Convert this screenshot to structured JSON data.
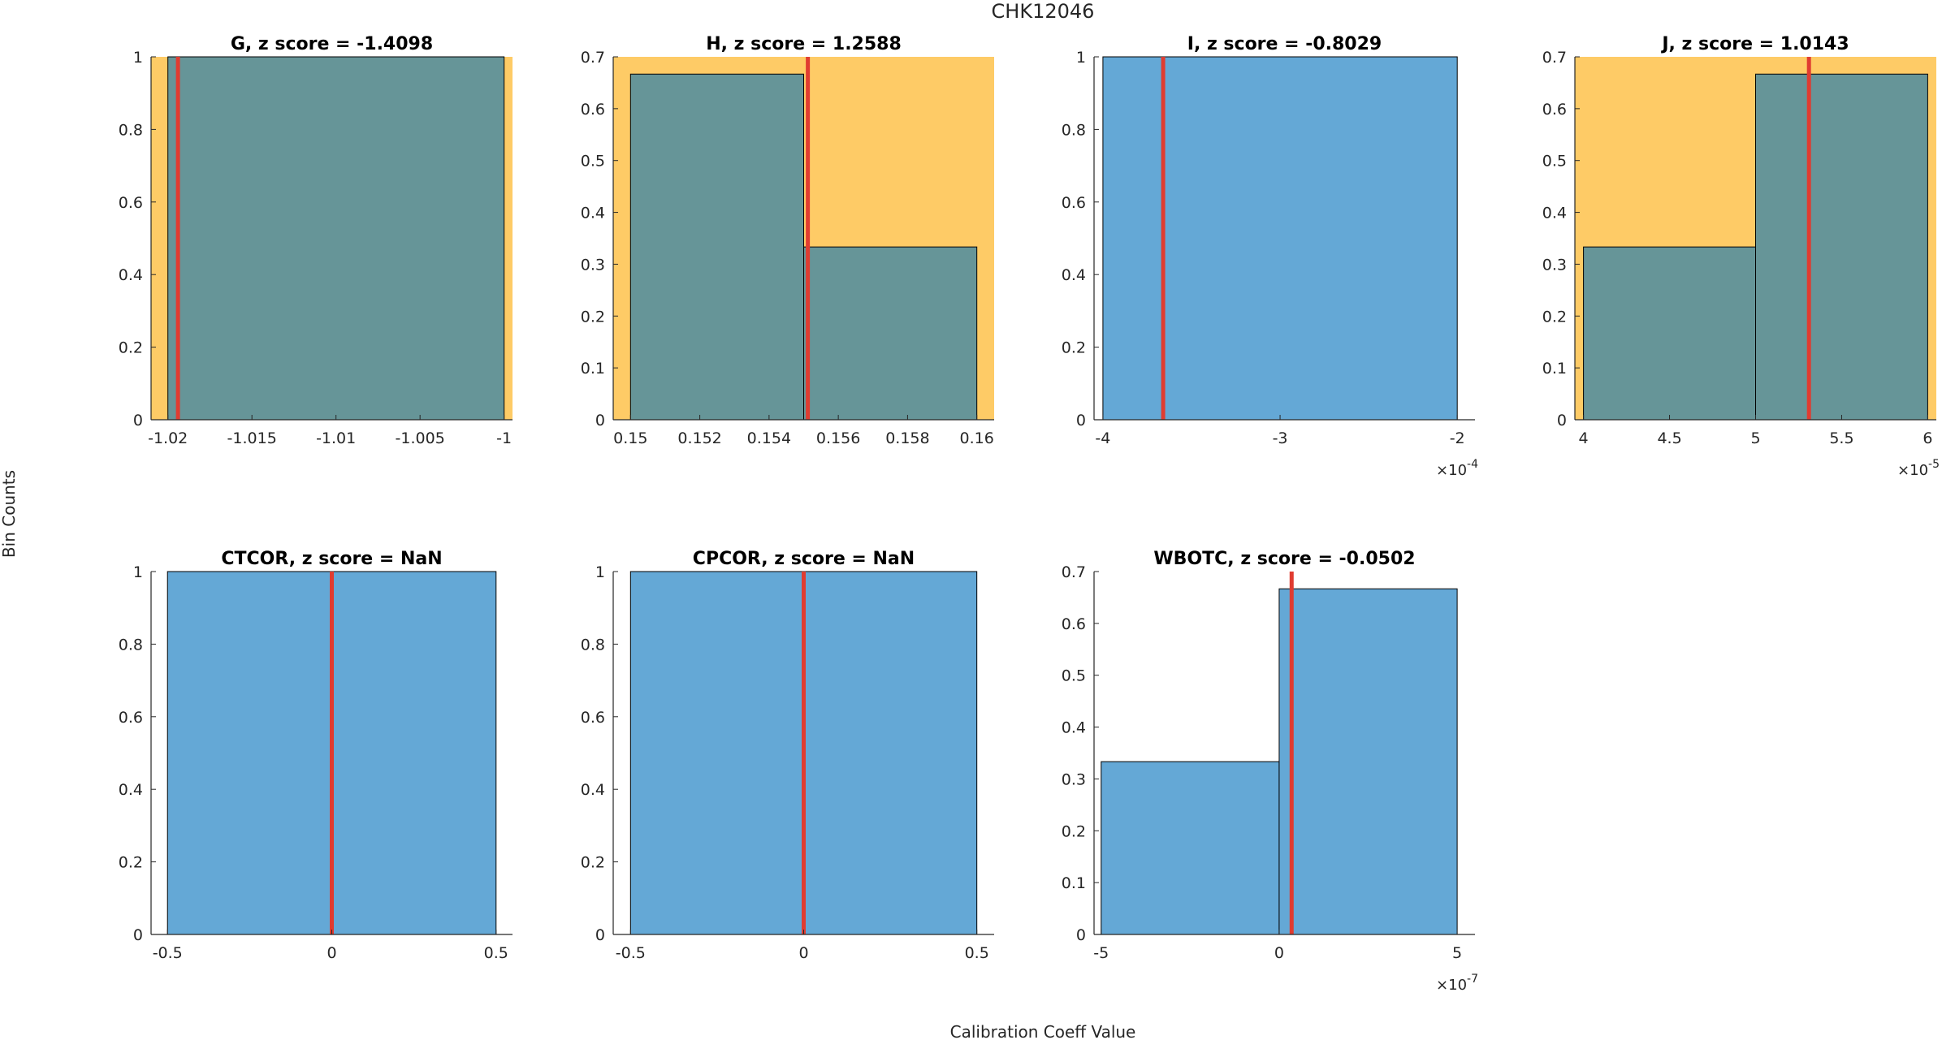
{
  "figure": {
    "title": "CHK12046",
    "xlabel": "Calibration Coeff Value",
    "ylabel": "Bin Counts"
  },
  "colors": {
    "bar": "#64a8d6",
    "bar_on_highlight": "#669598",
    "highlight": "#fecb66",
    "marker": "#e03c31",
    "axis": "#262626",
    "bar_edge": "#000000"
  },
  "chart_data": [
    {
      "type": "histogram",
      "title": "G, z score = -1.4098",
      "highlight": true,
      "bins": [
        [
          -1.02,
          -1.0,
          1.0
        ]
      ],
      "marker": -1.0194,
      "xlim": [
        -1.021,
        -0.9995
      ],
      "ylim": [
        0,
        1
      ],
      "xticks": [
        -1.02,
        -1.015,
        -1.01,
        -1.005,
        -1
      ],
      "xtick_labels": [
        "-1.02",
        "-1.015",
        "-1.01",
        "-1.005",
        "-1"
      ],
      "yticks": [
        0,
        0.2,
        0.4,
        0.6,
        0.8,
        1
      ],
      "ytick_labels": [
        "0",
        "0.2",
        "0.4",
        "0.6",
        "0.8",
        "1"
      ],
      "exponent": ""
    },
    {
      "type": "histogram",
      "title": "H, z score = 1.2588",
      "highlight": true,
      "bins": [
        [
          0.15,
          0.155,
          0.6667
        ],
        [
          0.155,
          0.16,
          0.3333
        ]
      ],
      "marker": 0.15512,
      "xlim": [
        0.1495,
        0.1605
      ],
      "ylim": [
        0,
        0.7
      ],
      "xticks": [
        0.15,
        0.152,
        0.154,
        0.156,
        0.158,
        0.16
      ],
      "xtick_labels": [
        "0.15",
        "0.152",
        "0.154",
        "0.156",
        "0.158",
        "0.16"
      ],
      "yticks": [
        0,
        0.1,
        0.2,
        0.3,
        0.4,
        0.5,
        0.6,
        0.7
      ],
      "ytick_labels": [
        "0",
        "0.1",
        "0.2",
        "0.3",
        "0.4",
        "0.5",
        "0.6",
        "0.7"
      ],
      "exponent": ""
    },
    {
      "type": "histogram",
      "title": "I, z score = -0.8029",
      "highlight": false,
      "bins": [
        [
          -4,
          -2,
          1.0
        ]
      ],
      "marker": -3.66,
      "xlim": [
        -4.05,
        -1.9
      ],
      "ylim": [
        0,
        1
      ],
      "xticks": [
        -4,
        -3,
        -2
      ],
      "xtick_labels": [
        "-4",
        "-3",
        "-2"
      ],
      "yticks": [
        0,
        0.2,
        0.4,
        0.6,
        0.8,
        1
      ],
      "ytick_labels": [
        "0",
        "0.2",
        "0.4",
        "0.6",
        "0.8",
        "1"
      ],
      "exponent": "×10",
      "exponent_power": "-4"
    },
    {
      "type": "histogram",
      "title": "J, z score = 1.0143",
      "highlight": true,
      "bins": [
        [
          4,
          5,
          0.3333
        ],
        [
          5,
          6,
          0.6667
        ]
      ],
      "marker": 5.31,
      "xlim": [
        3.95,
        6.05
      ],
      "ylim": [
        0,
        0.7
      ],
      "xticks": [
        4,
        4.5,
        5,
        5.5,
        6
      ],
      "xtick_labels": [
        "4",
        "4.5",
        "5",
        "5.5",
        "6"
      ],
      "yticks": [
        0,
        0.1,
        0.2,
        0.3,
        0.4,
        0.5,
        0.6,
        0.7
      ],
      "ytick_labels": [
        "0",
        "0.1",
        "0.2",
        "0.3",
        "0.4",
        "0.5",
        "0.6",
        "0.7"
      ],
      "exponent": "×10",
      "exponent_power": "-5"
    },
    {
      "type": "histogram",
      "title": "CTCOR, z score = NaN",
      "highlight": false,
      "bins": [
        [
          -0.5,
          0.5,
          1.0
        ]
      ],
      "marker": 0,
      "xlim": [
        -0.55,
        0.55
      ],
      "ylim": [
        0,
        1
      ],
      "xticks": [
        -0.5,
        0,
        0.5
      ],
      "xtick_labels": [
        "-0.5",
        "0",
        "0.5"
      ],
      "yticks": [
        0,
        0.2,
        0.4,
        0.6,
        0.8,
        1
      ],
      "ytick_labels": [
        "0",
        "0.2",
        "0.4",
        "0.6",
        "0.8",
        "1"
      ],
      "exponent": ""
    },
    {
      "type": "histogram",
      "title": "CPCOR, z score = NaN",
      "highlight": false,
      "bins": [
        [
          -0.5,
          0.5,
          1.0
        ]
      ],
      "marker": 0,
      "xlim": [
        -0.55,
        0.55
      ],
      "ylim": [
        0,
        1
      ],
      "xticks": [
        -0.5,
        0,
        0.5
      ],
      "xtick_labels": [
        "-0.5",
        "0",
        "0.5"
      ],
      "yticks": [
        0,
        0.2,
        0.4,
        0.6,
        0.8,
        1
      ],
      "ytick_labels": [
        "0",
        "0.2",
        "0.4",
        "0.6",
        "0.8",
        "1"
      ],
      "exponent": ""
    },
    {
      "type": "histogram",
      "title": "WBOTC, z score = -0.0502",
      "highlight": false,
      "bins": [
        [
          -5,
          0,
          0.3333
        ],
        [
          0,
          5,
          0.6667
        ]
      ],
      "marker": 0.35,
      "xlim": [
        -5.2,
        5.5
      ],
      "ylim": [
        0,
        0.7
      ],
      "xticks": [
        -5,
        0,
        5
      ],
      "xtick_labels": [
        "-5",
        "0",
        "5"
      ],
      "yticks": [
        0,
        0.1,
        0.2,
        0.3,
        0.4,
        0.5,
        0.6,
        0.7
      ],
      "ytick_labels": [
        "0",
        "0.1",
        "0.2",
        "0.3",
        "0.4",
        "0.5",
        "0.6",
        "0.7"
      ],
      "exponent": "×10",
      "exponent_power": "-7"
    }
  ]
}
